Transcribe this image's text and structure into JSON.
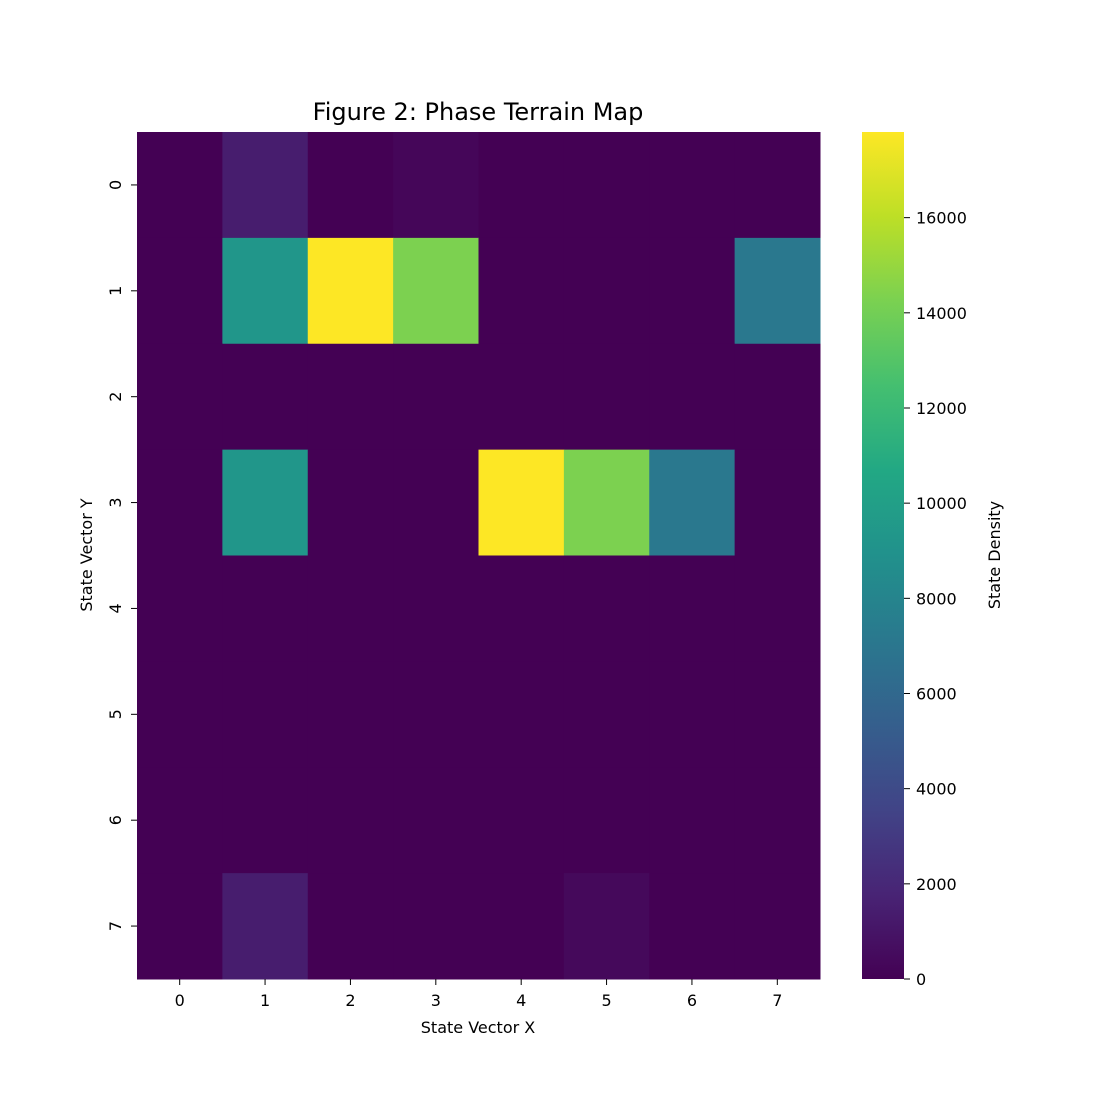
{
  "chart_data": {
    "type": "heatmap",
    "title": "Figure 2: Phase Terrain Map",
    "xlabel": "State Vector X",
    "ylabel": "State Vector Y",
    "x_categories": [
      "0",
      "1",
      "2",
      "3",
      "4",
      "5",
      "6",
      "7"
    ],
    "y_categories": [
      "0",
      "1",
      "2",
      "3",
      "4",
      "5",
      "6",
      "7"
    ],
    "values": [
      [
        0,
        1400,
        0,
        250,
        0,
        0,
        0,
        0
      ],
      [
        0,
        9300,
        17800,
        14300,
        0,
        0,
        0,
        7100
      ],
      [
        0,
        0,
        0,
        0,
        0,
        0,
        0,
        0
      ],
      [
        0,
        9300,
        0,
        0,
        17800,
        14300,
        7100,
        0
      ],
      [
        0,
        0,
        0,
        0,
        0,
        0,
        0,
        0
      ],
      [
        0,
        0,
        0,
        0,
        0,
        0,
        0,
        0
      ],
      [
        0,
        0,
        0,
        0,
        0,
        0,
        0,
        0
      ],
      [
        0,
        1400,
        0,
        0,
        0,
        400,
        0,
        0
      ]
    ],
    "colormap": "viridis",
    "vmin": 0,
    "vmax": 17800,
    "colorbar": {
      "label": "State Density",
      "ticks": [
        "0",
        "2000",
        "4000",
        "6000",
        "8000",
        "10000",
        "12000",
        "14000",
        "16000"
      ]
    }
  }
}
